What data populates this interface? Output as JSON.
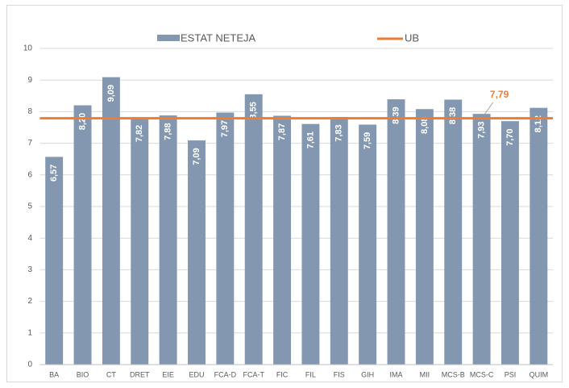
{
  "chart_data": {
    "type": "bar",
    "categories": [
      "BA",
      "BIO",
      "CT",
      "DRET",
      "EIE",
      "EDU",
      "FCA-D",
      "FCA-T",
      "FIC",
      "FIL",
      "FIS",
      "GIH",
      "IMA",
      "MII",
      "MCS-B",
      "MCS-C",
      "PSI",
      "QUIM"
    ],
    "series": [
      {
        "name": "ESTAT NETEJA",
        "color": "#8497b0",
        "values": [
          6.57,
          8.2,
          9.09,
          7.82,
          7.88,
          7.09,
          7.97,
          8.55,
          7.87,
          7.61,
          7.83,
          7.59,
          8.39,
          8.08,
          8.38,
          7.93,
          7.7,
          8.12
        ],
        "value_labels": [
          "6,57",
          "8,20",
          "9,09",
          "7,82",
          "7,88",
          "7,09",
          "7,97",
          "8,55",
          "7,87",
          "7,61",
          "7,83",
          "7,59",
          "8,39",
          "8,08",
          "8,38",
          "7,93",
          "7,70",
          "8,12"
        ]
      }
    ],
    "reference_line": {
      "name": "UB",
      "color": "#ed7d31",
      "value": 7.79,
      "value_label": "7,79"
    },
    "ylim": [
      0,
      10
    ],
    "yticks": [
      0,
      1,
      2,
      3,
      4,
      5,
      6,
      7,
      8,
      9,
      10
    ],
    "grid": true,
    "legend": "top"
  }
}
